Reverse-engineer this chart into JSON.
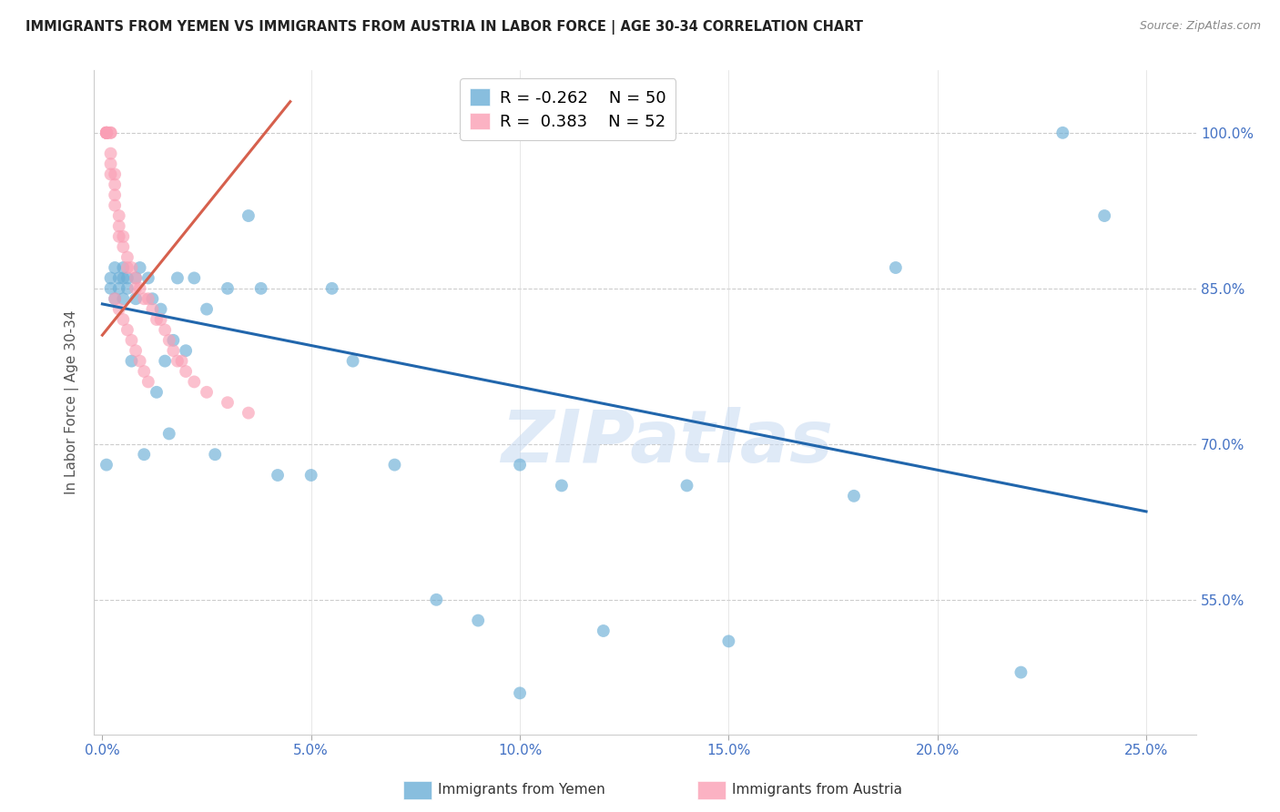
{
  "title": "IMMIGRANTS FROM YEMEN VS IMMIGRANTS FROM AUSTRIA IN LABOR FORCE | AGE 30-34 CORRELATION CHART",
  "source": "Source: ZipAtlas.com",
  "xlabel_ticks": [
    "0.0%",
    "5.0%",
    "10.0%",
    "15.0%",
    "20.0%",
    "25.0%"
  ],
  "xlabel_vals": [
    0.0,
    0.05,
    0.1,
    0.15,
    0.2,
    0.25
  ],
  "ylabel_ticks": [
    "100.0%",
    "85.0%",
    "70.0%",
    "55.0%"
  ],
  "ylabel_vals": [
    1.0,
    0.85,
    0.7,
    0.55
  ],
  "ylabel_label": "In Labor Force | Age 30-34",
  "legend_blue_R": "-0.262",
  "legend_blue_N": "50",
  "legend_pink_R": "0.383",
  "legend_pink_N": "52",
  "legend_label_blue": "Immigrants from Yemen",
  "legend_label_pink": "Immigrants from Austria",
  "watermark": "ZIPatlas",
  "blue_color": "#6baed6",
  "pink_color": "#fa9fb5",
  "blue_line_color": "#2166ac",
  "pink_line_color": "#d6604d",
  "blue_scatter_x": [
    0.001,
    0.002,
    0.002,
    0.003,
    0.003,
    0.004,
    0.004,
    0.005,
    0.005,
    0.005,
    0.006,
    0.006,
    0.007,
    0.008,
    0.008,
    0.009,
    0.01,
    0.011,
    0.012,
    0.013,
    0.014,
    0.015,
    0.016,
    0.017,
    0.018,
    0.02,
    0.022,
    0.025,
    0.027,
    0.03,
    0.035,
    0.038,
    0.042,
    0.05,
    0.055,
    0.06,
    0.07,
    0.08,
    0.09,
    0.1,
    0.11,
    0.12,
    0.14,
    0.15,
    0.18,
    0.19,
    0.22,
    0.23,
    0.24,
    0.1
  ],
  "blue_scatter_y": [
    0.68,
    0.86,
    0.85,
    0.84,
    0.87,
    0.85,
    0.86,
    0.84,
    0.86,
    0.87,
    0.85,
    0.86,
    0.78,
    0.86,
    0.84,
    0.87,
    0.69,
    0.86,
    0.84,
    0.75,
    0.83,
    0.78,
    0.71,
    0.8,
    0.86,
    0.79,
    0.86,
    0.83,
    0.69,
    0.85,
    0.92,
    0.85,
    0.67,
    0.67,
    0.85,
    0.78,
    0.68,
    0.55,
    0.53,
    0.68,
    0.66,
    0.52,
    0.66,
    0.51,
    0.65,
    0.87,
    0.48,
    1.0,
    0.92,
    0.46
  ],
  "pink_scatter_x": [
    0.001,
    0.001,
    0.001,
    0.001,
    0.001,
    0.001,
    0.001,
    0.001,
    0.002,
    0.002,
    0.002,
    0.002,
    0.002,
    0.003,
    0.003,
    0.003,
    0.003,
    0.004,
    0.004,
    0.004,
    0.005,
    0.005,
    0.006,
    0.006,
    0.007,
    0.008,
    0.009,
    0.01,
    0.011,
    0.012,
    0.013,
    0.014,
    0.015,
    0.016,
    0.017,
    0.018,
    0.019,
    0.02,
    0.022,
    0.025,
    0.03,
    0.035,
    0.008,
    0.003,
    0.004,
    0.005,
    0.006,
    0.007,
    0.008,
    0.009,
    0.01,
    0.011
  ],
  "pink_scatter_y": [
    1.0,
    1.0,
    1.0,
    1.0,
    1.0,
    1.0,
    1.0,
    1.0,
    1.0,
    1.0,
    0.98,
    0.97,
    0.96,
    0.96,
    0.95,
    0.94,
    0.93,
    0.92,
    0.91,
    0.9,
    0.9,
    0.89,
    0.88,
    0.87,
    0.87,
    0.86,
    0.85,
    0.84,
    0.84,
    0.83,
    0.82,
    0.82,
    0.81,
    0.8,
    0.79,
    0.78,
    0.78,
    0.77,
    0.76,
    0.75,
    0.74,
    0.73,
    0.85,
    0.84,
    0.83,
    0.82,
    0.81,
    0.8,
    0.79,
    0.78,
    0.77,
    0.76
  ],
  "blue_line_x": [
    0.0,
    0.25
  ],
  "blue_line_y": [
    0.835,
    0.635
  ],
  "pink_line_x": [
    0.0,
    0.045
  ],
  "pink_line_y": [
    0.805,
    1.03
  ],
  "xlim": [
    -0.002,
    0.262
  ],
  "ylim": [
    0.42,
    1.06
  ],
  "xgrid_vals": [
    0.05,
    0.1,
    0.15,
    0.2,
    0.25
  ]
}
